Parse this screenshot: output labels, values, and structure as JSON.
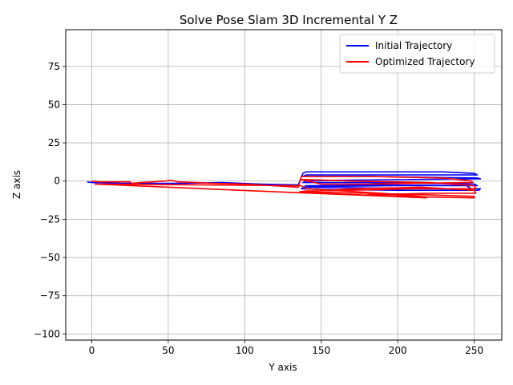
{
  "chart_data": {
    "type": "line",
    "title": "Solve Pose Slam 3D Incremental Y Z",
    "xlabel": "Y axis",
    "ylabel": "Z axis",
    "xlim": [
      -17,
      268
    ],
    "ylim": [
      -104,
      99
    ],
    "xticks": [
      0,
      50,
      100,
      150,
      200,
      250
    ],
    "yticks": [
      75,
      50,
      25,
      0,
      -25,
      -50,
      -75,
      -100
    ],
    "grid": true,
    "legend_position": "top-right",
    "series": [
      {
        "name": "Initial Trajectory",
        "color": "#0000ff",
        "points": [
          [
            -3,
            -0.5
          ],
          [
            0,
            -1
          ],
          [
            20,
            -1.5
          ],
          [
            40,
            -1.5
          ],
          [
            60,
            -1.5
          ],
          [
            85,
            -1
          ],
          [
            110,
            -2
          ],
          [
            135,
            -2.5
          ],
          [
            138,
            5
          ],
          [
            140,
            6
          ],
          [
            180,
            6
          ],
          [
            200,
            6
          ],
          [
            230,
            6
          ],
          [
            250,
            5
          ],
          [
            252,
            4
          ],
          [
            140,
            4
          ],
          [
            138,
            3
          ],
          [
            180,
            3
          ],
          [
            220,
            2.5
          ],
          [
            252,
            2
          ],
          [
            254,
            1.5
          ],
          [
            210,
            1
          ],
          [
            160,
            0.5
          ],
          [
            140,
            0
          ],
          [
            138,
            -1
          ],
          [
            180,
            -1
          ],
          [
            220,
            -1.5
          ],
          [
            250,
            -2
          ],
          [
            252,
            -3
          ],
          [
            200,
            -3
          ],
          [
            150,
            -3.5
          ],
          [
            138,
            -4
          ],
          [
            180,
            -4.5
          ],
          [
            230,
            -5
          ],
          [
            254,
            -5
          ],
          [
            253,
            -6
          ],
          [
            200,
            -6
          ],
          [
            150,
            -5.5
          ],
          [
            137,
            -5
          ],
          [
            140,
            -3
          ],
          [
            190,
            -2.5
          ],
          [
            245,
            -3
          ],
          [
            248,
            -5
          ]
        ]
      },
      {
        "name": "Optimized Trajectory",
        "color": "#ff0000",
        "points": [
          [
            0,
            0
          ],
          [
            5,
            -0.5
          ],
          [
            25,
            -0.5
          ],
          [
            26,
            -1.5
          ],
          [
            32,
            -1
          ],
          [
            40,
            -0.5
          ],
          [
            48,
            0
          ],
          [
            52,
            0.5
          ],
          [
            56,
            -0.5
          ],
          [
            80,
            -1.5
          ],
          [
            100,
            -2
          ],
          [
            118,
            -3
          ],
          [
            135,
            -4
          ],
          [
            137,
            3
          ],
          [
            180,
            3
          ],
          [
            230,
            2
          ],
          [
            248,
            0
          ],
          [
            249,
            -1
          ],
          [
            210,
            -1.5
          ],
          [
            180,
            -2
          ],
          [
            150,
            -2
          ],
          [
            137,
            1
          ],
          [
            170,
            0
          ],
          [
            220,
            -1
          ],
          [
            250,
            -3
          ],
          [
            251,
            -5
          ],
          [
            210,
            -5
          ],
          [
            170,
            -6
          ],
          [
            140,
            -6.5
          ],
          [
            136,
            -7
          ],
          [
            180,
            -8
          ],
          [
            220,
            -9
          ],
          [
            250,
            -10
          ],
          [
            250,
            -11
          ],
          [
            200,
            -10
          ],
          [
            150,
            -8
          ],
          [
            138,
            -7
          ],
          [
            170,
            -5
          ],
          [
            215,
            -4
          ],
          [
            250,
            -6
          ],
          [
            251,
            -8
          ],
          [
            220,
            -8
          ],
          [
            180,
            -9
          ],
          [
            220,
            -10.5
          ],
          [
            190,
            -8
          ],
          [
            140,
            -5
          ],
          [
            137,
            -3
          ],
          [
            2,
            -2
          ],
          [
            120,
            -7
          ],
          [
            219,
            -11
          ]
        ]
      }
    ]
  }
}
